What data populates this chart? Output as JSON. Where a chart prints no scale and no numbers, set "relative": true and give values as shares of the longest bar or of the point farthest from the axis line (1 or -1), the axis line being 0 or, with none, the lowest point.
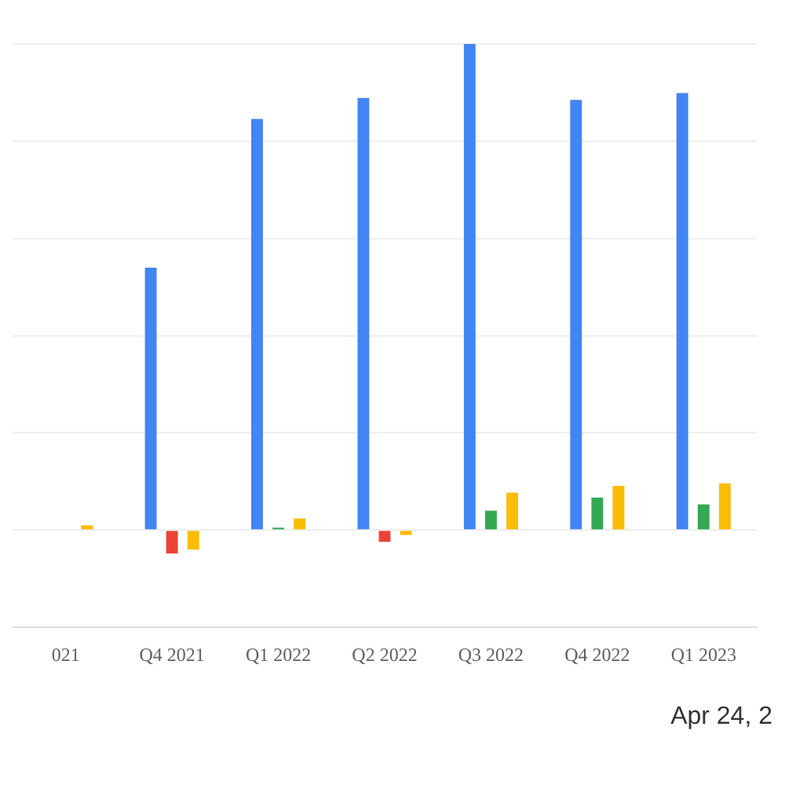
{
  "chart_data": {
    "type": "bar",
    "relative": true,
    "grid": "y",
    "legend": false,
    "categories": [
      "021",
      "Q4 2021",
      "Q1 2022",
      "Q2 2022",
      "Q3 2022",
      "Q4 2022",
      "Q1 2023"
    ],
    "series": [
      {
        "color": "#4285f4",
        "values": [
          null,
          0.54,
          0.846,
          0.889,
          1,
          0.885,
          0.899
        ]
      },
      {
        "color": "#34a853",
        "colors": [
          null,
          "#ea4335",
          null,
          "#ea4335",
          null,
          null,
          null
        ],
        "values": [
          null,
          -0.048,
          0.005,
          -0.024,
          0.04,
          0.067,
          0.053
        ]
      },
      {
        "color": "#fbbc04",
        "values": [
          0.01,
          -0.04,
          0.024,
          -0.01,
          0.077,
          0.091,
          0.096
        ]
      }
    ],
    "annotations": [
      "Apr 24, 2"
    ]
  }
}
